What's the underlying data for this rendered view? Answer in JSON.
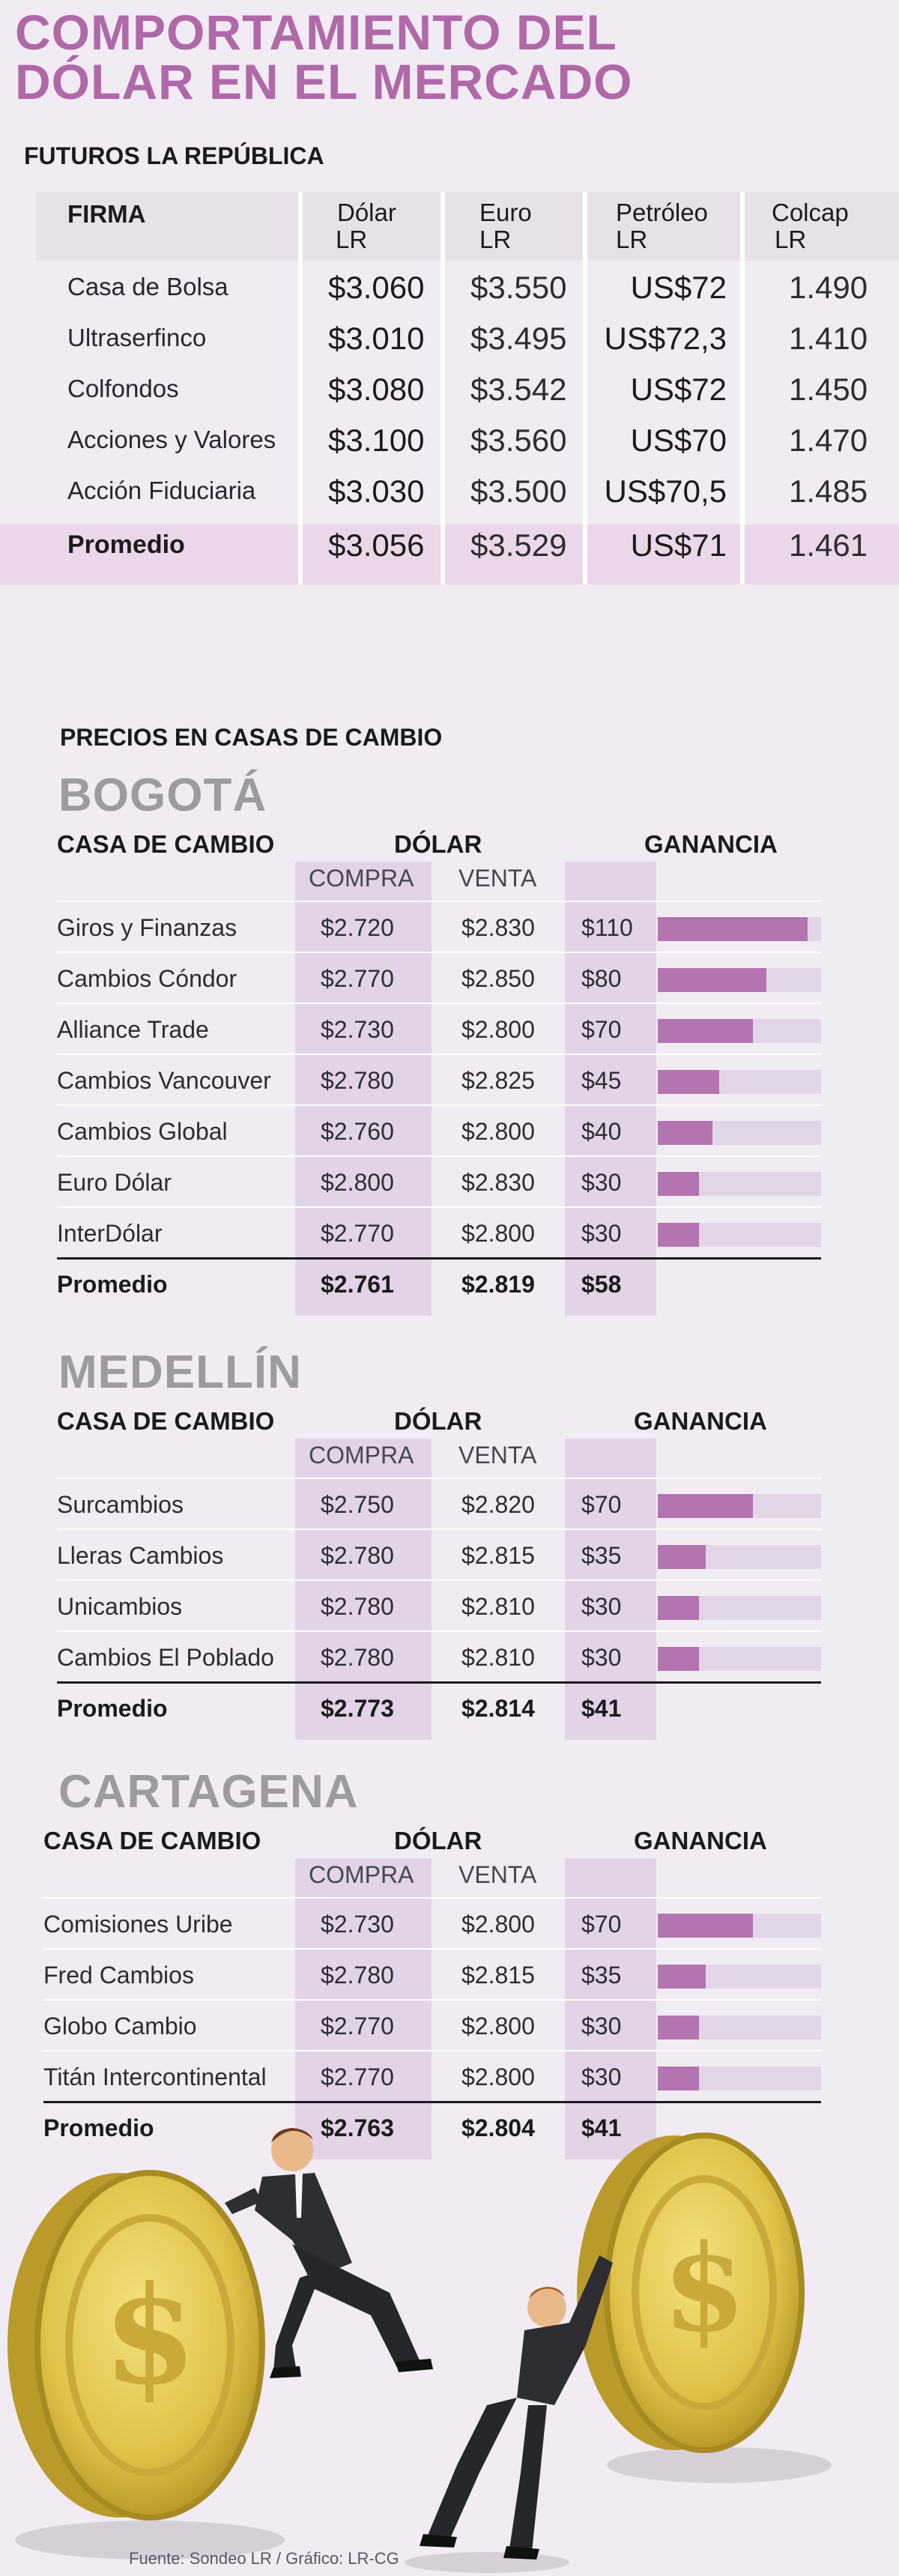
{
  "title_line1": "COMPORTAMIENTO DEL",
  "title_line2": "DÓLAR EN EL MERCADO",
  "futures_title": "FUTUROS LA REPÚBLICA",
  "futures_headers": {
    "firma": "FIRMA",
    "dolar_1": "Dólar",
    "dolar_2": "LR",
    "euro_1": "Euro",
    "euro_2": "LR",
    "petroleo_1": "Petróleo",
    "petroleo_2": "LR",
    "colcap_1": "Colcap",
    "colcap_2": "LR"
  },
  "futures_rows": [
    {
      "firma": "Casa de Bolsa",
      "dolar": "$3.060",
      "euro": "$3.550",
      "petroleo": "US$72",
      "colcap": "1.490"
    },
    {
      "firma": "Ultraserfinco",
      "dolar": "$3.010",
      "euro": "$3.495",
      "petroleo": "US$72,3",
      "colcap": "1.410"
    },
    {
      "firma": "Colfondos",
      "dolar": "$3.080",
      "euro": "$3.542",
      "petroleo": "US$72",
      "colcap": "1.450"
    },
    {
      "firma": "Acciones y Valores",
      "dolar": "$3.100",
      "euro": "$3.560",
      "petroleo": "US$70",
      "colcap": "1.470"
    },
    {
      "firma": "Acción Fiduciaria",
      "dolar": "$3.030",
      "euro": "$3.500",
      "petroleo": "US$70,5",
      "colcap": "1.485"
    }
  ],
  "futures_avg": {
    "firma": "Promedio",
    "dolar": "$3.056",
    "euro": "$3.529",
    "petroleo": "US$71",
    "colcap": "1.461"
  },
  "exchange_title": "PRECIOS EN CASAS DE CAMBIO",
  "labels": {
    "casa": "CASA DE CAMBIO",
    "dolar": "DÓLAR",
    "ganancia": "GANANCIA",
    "compra": "COMPRA",
    "venta": "VENTA"
  },
  "cities": [
    {
      "name": "BOGOTÁ",
      "rows": [
        {
          "casa": "Giros y Finanzas",
          "compra": "$2.720",
          "venta": "$2.830",
          "ganancia": "$110",
          "value": 110
        },
        {
          "casa": "Cambios Cóndor",
          "compra": "$2.770",
          "venta": "$2.850",
          "ganancia": "$80",
          "value": 80
        },
        {
          "casa": "Alliance Trade",
          "compra": "$2.730",
          "venta": "$2.800",
          "ganancia": "$70",
          "value": 70
        },
        {
          "casa": "Cambios Vancouver",
          "compra": "$2.780",
          "venta": "$2.825",
          "ganancia": "$45",
          "value": 45
        },
        {
          "casa": "Cambios Global",
          "compra": "$2.760",
          "venta": "$2.800",
          "ganancia": "$40",
          "value": 40
        },
        {
          "casa": "Euro Dólar",
          "compra": "$2.800",
          "venta": "$2.830",
          "ganancia": "$30",
          "value": 30
        },
        {
          "casa": "InterDólar",
          "compra": "$2.770",
          "venta": "$2.800",
          "ganancia": "$30",
          "value": 30
        }
      ],
      "avg": {
        "casa": "Promedio",
        "compra": "$2.761",
        "venta": "$2.819",
        "ganancia": "$58"
      }
    },
    {
      "name": "MEDELLÍN",
      "rows": [
        {
          "casa": "Surcambios",
          "compra": "$2.750",
          "venta": "$2.820",
          "ganancia": "$70",
          "value": 70
        },
        {
          "casa": "Lleras Cambios",
          "compra": "$2.780",
          "venta": "$2.815",
          "ganancia": "$35",
          "value": 35
        },
        {
          "casa": "Unicambios",
          "compra": "$2.780",
          "venta": "$2.810",
          "ganancia": "$30",
          "value": 30
        },
        {
          "casa": "Cambios El Poblado",
          "compra": "$2.780",
          "venta": "$2.810",
          "ganancia": "$30",
          "value": 30
        }
      ],
      "avg": {
        "casa": "Promedio",
        "compra": "$2.773",
        "venta": "$2.814",
        "ganancia": "$41"
      }
    },
    {
      "name": "CARTAGENA",
      "rows": [
        {
          "casa": "Comisiones Uribe",
          "compra": "$2.730",
          "venta": "$2.800",
          "ganancia": "$70",
          "value": 70
        },
        {
          "casa": "Fred Cambios",
          "compra": "$2.780",
          "venta": "$2.815",
          "ganancia": "$35",
          "value": 35
        },
        {
          "casa": "Globo Cambio",
          "compra": "$2.770",
          "venta": "$2.800",
          "ganancia": "$30",
          "value": 30
        },
        {
          "casa": "Titán Intercontinental",
          "compra": "$2.770",
          "venta": "$2.800",
          "ganancia": "$30",
          "value": 30
        }
      ],
      "avg": {
        "casa": "Promedio",
        "compra": "$2.763",
        "venta": "$2.804",
        "ganancia": "$41"
      }
    }
  ],
  "source": "Fuente: Sondeo LR / Gráfico: LR-CG",
  "colors": {
    "accent": "#b068a8",
    "bar": "#b374b0",
    "bar_bg": "#e2d6e6",
    "band": "#e3d3e6",
    "city": "#9e9aa2"
  },
  "chart_data": {
    "type": "bar",
    "title": "GANANCIA",
    "xlim": [
      0,
      120
    ],
    "series": [
      {
        "categories": [
          "Giros y Finanzas",
          "Cambios Cóndor",
          "Alliance Trade",
          "Cambios Vancouver",
          "Cambios Global",
          "Euro Dólar",
          "InterDólar"
        ],
        "values": [
          110,
          80,
          70,
          45,
          40,
          30,
          30
        ]
      },
      {
        "categories": [
          "Surcambios",
          "Lleras Cambios",
          "Unicambios",
          "Cambios El Poblado"
        ],
        "values": [
          70,
          35,
          30,
          30
        ]
      },
      {
        "categories": [
          "Comisiones Uribe",
          "Fred Cambios",
          "Globo Cambio",
          "Titán Intercontinental"
        ],
        "values": [
          70,
          35,
          30,
          30
        ]
      }
    ]
  }
}
